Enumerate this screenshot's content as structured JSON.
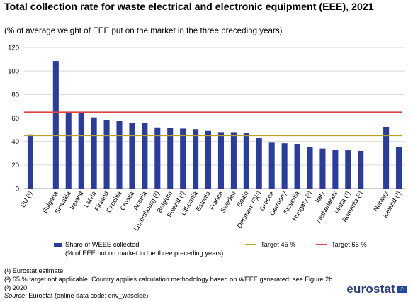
{
  "title": "Total collection rate for waste electrical and electronic equipment (EEE), 2021",
  "subtitle": "(% of average weight of EEE put on the market in the three preceding years)",
  "chart_data": {
    "type": "bar",
    "categories": [
      "EU (¹)",
      "Bulgaria",
      "Slovakia",
      "Ireland",
      "Latvia",
      "Finland",
      "Czechia",
      "Croatia",
      "Austria",
      "Luxembourg (²)",
      "Belgium",
      "Poland (³)",
      "Lithuania",
      "Estonia",
      "France",
      "Sweden",
      "Spain",
      "Denmark (²)(³)",
      "Greece",
      "Germany",
      "Slovenia",
      "Hungary (³)",
      "Italy",
      "Netherlands",
      "Malta (³)",
      "Romania (³)",
      "Norway",
      "Iceland (³)"
    ],
    "group_breaks_after": [
      "EU (¹)",
      "Romania (³)"
    ],
    "series": [
      {
        "name": "Share of WEEE collected",
        "name_line2": "(% of EEE put on market in the three preceding years)",
        "color": "#2a3c9e",
        "values": [
          46,
          108.5,
          65,
          64,
          60.5,
          58.5,
          57.5,
          56,
          56,
          52,
          51.5,
          51,
          50.5,
          49,
          48,
          48,
          47.5,
          43,
          39,
          38.5,
          38,
          35.5,
          34,
          33,
          32.5,
          32,
          52.5,
          35.5
        ]
      }
    ],
    "targets": [
      {
        "name": "Target 45 %",
        "value": 45,
        "color": "#b8a02a"
      },
      {
        "name": "Target 65 %",
        "value": 65,
        "color": "#e0423f"
      }
    ],
    "ylim": [
      0,
      120
    ],
    "yticks": [
      0,
      20,
      40,
      60,
      80,
      100,
      120
    ],
    "xlabel": "",
    "ylabel": "",
    "grid": "horizontal",
    "legend_position": "bottom"
  },
  "footnotes": [
    "(¹) Eurostat estimate.",
    "(²) 65 % target not applicable. Country applies calculation methodology based on WEEE generated: see Figure 2b.",
    "(³) 2020."
  ],
  "source": {
    "label": "Source:",
    "text": "Eurostat (online data code: env_waselee)"
  },
  "logo": {
    "text": "eurostat"
  }
}
